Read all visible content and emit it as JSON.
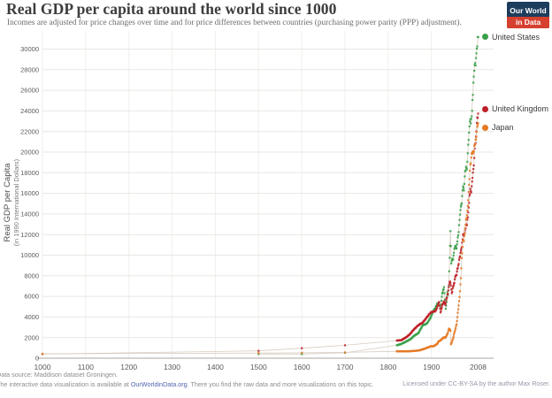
{
  "header": {
    "title": "Real GDP per capita around the world since 1000",
    "subtitle": "Incomes are adjusted for price changes over time and for price differences between countries (purchasing power parity (PPP) adjustment)."
  },
  "logo": {
    "line1": "Our World",
    "line2": "in Data",
    "bg_color": "#1d3d5c",
    "accent_color": "#d6402f"
  },
  "chart_data": {
    "type": "scatter",
    "title": "Real GDP per capita around the world since 1000",
    "xlabel": "",
    "ylabel_line1": "Real GDP per Capita",
    "ylabel_line2": "(in 1990 International Dollars)",
    "x_ticks": [
      1000,
      1100,
      1200,
      1300,
      1400,
      1500,
      1600,
      1700,
      1800,
      1900,
      2008
    ],
    "y_ticks": [
      0,
      2000,
      4000,
      6000,
      8000,
      10000,
      12000,
      14000,
      16000,
      18000,
      20000,
      22000,
      24000,
      26000,
      28000,
      30000
    ],
    "xlim": [
      1000,
      2008
    ],
    "ylim": [
      0,
      31750
    ],
    "grid": true,
    "legend_position": "right",
    "marker_line_color": "#d4c8ba",
    "series": [
      {
        "name": "United States",
        "color": "#38a049",
        "points": [
          [
            1500,
            400
          ],
          [
            1600,
            400
          ],
          [
            1700,
            527
          ],
          [
            1820,
            1257
          ],
          [
            1830,
            1376
          ],
          [
            1840,
            1588
          ],
          [
            1850,
            1806
          ],
          [
            1860,
            2178
          ],
          [
            1870,
            2445
          ],
          [
            1880,
            3184
          ],
          [
            1890,
            3392
          ],
          [
            1900,
            4091
          ],
          [
            1905,
            4642
          ],
          [
            1910,
            4964
          ],
          [
            1913,
            5301
          ],
          [
            1917,
            5248
          ],
          [
            1921,
            4908
          ],
          [
            1925,
            6282
          ],
          [
            1929,
            6899
          ],
          [
            1931,
            5691
          ],
          [
            1933,
            4777
          ],
          [
            1935,
            5467
          ],
          [
            1937,
            6430
          ],
          [
            1938,
            6126
          ],
          [
            1940,
            7010
          ],
          [
            1942,
            9741
          ],
          [
            1944,
            12333
          ],
          [
            1946,
            9197
          ],
          [
            1948,
            9573
          ],
          [
            1950,
            9561
          ],
          [
            1953,
            10613
          ],
          [
            1955,
            10897
          ],
          [
            1958,
            10631
          ],
          [
            1960,
            11328
          ],
          [
            1963,
            12242
          ],
          [
            1965,
            13419
          ],
          [
            1968,
            14716
          ],
          [
            1970,
            15030
          ],
          [
            1973,
            16689
          ],
          [
            1975,
            16284
          ],
          [
            1978,
            18134
          ],
          [
            1980,
            18577
          ],
          [
            1982,
            18325
          ],
          [
            1985,
            20717
          ],
          [
            1988,
            22499
          ],
          [
            1990,
            23201
          ],
          [
            1991,
            22785
          ],
          [
            1993,
            23477
          ],
          [
            1995,
            25066
          ],
          [
            1998,
            27331
          ],
          [
            2000,
            28467
          ],
          [
            2002,
            28402
          ],
          [
            2005,
            30040
          ],
          [
            2008,
            31178
          ]
        ]
      },
      {
        "name": "United Kingdom",
        "color": "#be2029",
        "points": [
          [
            1000,
            400
          ],
          [
            1500,
            714
          ],
          [
            1600,
            974
          ],
          [
            1700,
            1250
          ],
          [
            1820,
            1706
          ],
          [
            1830,
            1749
          ],
          [
            1840,
            1990
          ],
          [
            1850,
            2330
          ],
          [
            1860,
            2830
          ],
          [
            1870,
            3190
          ],
          [
            1880,
            3477
          ],
          [
            1890,
            4009
          ],
          [
            1900,
            4492
          ],
          [
            1905,
            4520
          ],
          [
            1910,
            4611
          ],
          [
            1913,
            4921
          ],
          [
            1916,
            5308
          ],
          [
            1918,
            5459
          ],
          [
            1921,
            4439
          ],
          [
            1925,
            5144
          ],
          [
            1929,
            5503
          ],
          [
            1932,
            5169
          ],
          [
            1935,
            5799
          ],
          [
            1938,
            6266
          ],
          [
            1941,
            7149
          ],
          [
            1943,
            7444
          ],
          [
            1945,
            7056
          ],
          [
            1947,
            6308
          ],
          [
            1950,
            6939
          ],
          [
            1953,
            7312
          ],
          [
            1955,
            7868
          ],
          [
            1958,
            8073
          ],
          [
            1960,
            8645
          ],
          [
            1963,
            9149
          ],
          [
            1965,
            9752
          ],
          [
            1968,
            10410
          ],
          [
            1970,
            10767
          ],
          [
            1973,
            12025
          ],
          [
            1975,
            11847
          ],
          [
            1978,
            12452
          ],
          [
            1980,
            12931
          ],
          [
            1982,
            12900
          ],
          [
            1985,
            14165
          ],
          [
            1988,
            15771
          ],
          [
            1990,
            16430
          ],
          [
            1992,
            16098
          ],
          [
            1995,
            17495
          ],
          [
            1998,
            18714
          ],
          [
            2000,
            20353
          ],
          [
            2003,
            21523
          ],
          [
            2005,
            22840
          ],
          [
            2008,
            23742
          ]
        ]
      },
      {
        "name": "Japan",
        "color": "#e67a25",
        "points": [
          [
            1000,
            425
          ],
          [
            1500,
            500
          ],
          [
            1600,
            520
          ],
          [
            1700,
            570
          ],
          [
            1820,
            669
          ],
          [
            1850,
            679
          ],
          [
            1870,
            737
          ],
          [
            1880,
            863
          ],
          [
            1890,
            1012
          ],
          [
            1900,
            1180
          ],
          [
            1905,
            1157
          ],
          [
            1910,
            1304
          ],
          [
            1913,
            1387
          ],
          [
            1917,
            1638
          ],
          [
            1920,
            1696
          ],
          [
            1925,
            1885
          ],
          [
            1929,
            2026
          ],
          [
            1932,
            1962
          ],
          [
            1935,
            2206
          ],
          [
            1938,
            2449
          ],
          [
            1940,
            2874
          ],
          [
            1942,
            2818
          ],
          [
            1944,
            2659
          ],
          [
            1945,
            1346
          ],
          [
            1947,
            1541
          ],
          [
            1950,
            1921
          ],
          [
            1953,
            2474
          ],
          [
            1955,
            2771
          ],
          [
            1958,
            3290
          ],
          [
            1960,
            3986
          ],
          [
            1963,
            5117
          ],
          [
            1965,
            5934
          ],
          [
            1968,
            7776
          ],
          [
            1970,
            9714
          ],
          [
            1973,
            11434
          ],
          [
            1975,
            11344
          ],
          [
            1978,
            12585
          ],
          [
            1980,
            13428
          ],
          [
            1983,
            14308
          ],
          [
            1985,
            15331
          ],
          [
            1988,
            17387
          ],
          [
            1990,
            18789
          ],
          [
            1992,
            19478
          ],
          [
            1995,
            19979
          ],
          [
            1998,
            20084
          ],
          [
            2000,
            20738
          ],
          [
            2003,
            21218
          ],
          [
            2005,
            21965
          ],
          [
            2008,
            22816
          ]
        ]
      }
    ]
  },
  "footer": {
    "source": "Data source: Maddison dataset Groningen.",
    "interactive_pre": "The interactive data visualization is available at ",
    "interactive_link": "OurWorldinData.org",
    "interactive_post": ". There you find the raw data and more visualizations on this topic.",
    "license": "Licensed under CC-BY-SA by the author Max Roser."
  }
}
